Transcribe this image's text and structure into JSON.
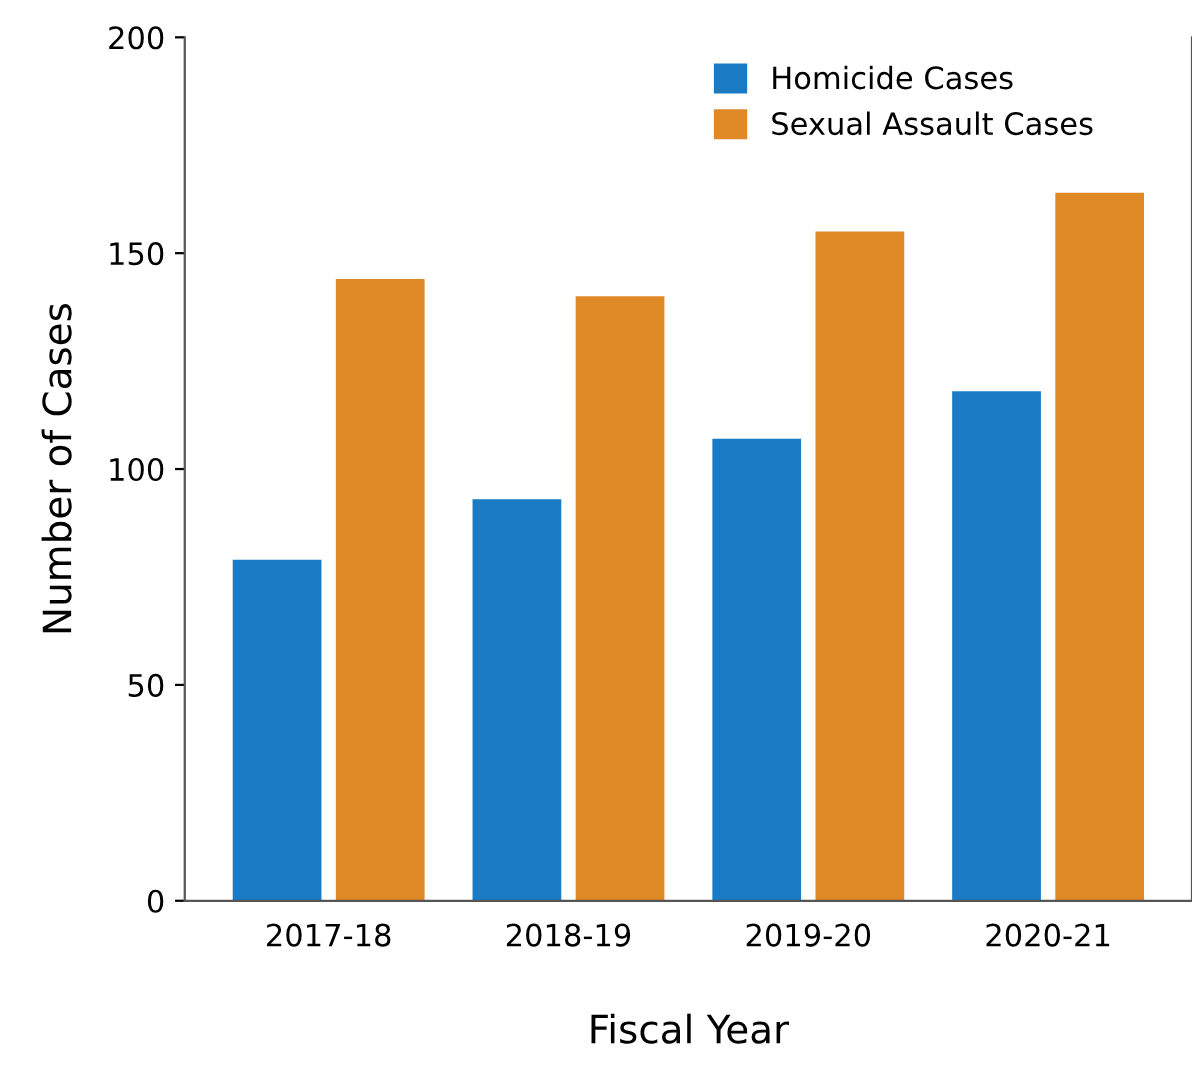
{
  "chart_data": {
    "type": "bar",
    "xlabel": "Fiscal Year",
    "ylabel": "Number of Cases",
    "categories": [
      "2017-18",
      "2018-19",
      "2019-20",
      "2020-21"
    ],
    "series": [
      {
        "name": "Homicide Cases",
        "color": "#1a7ac4",
        "values": [
          79,
          93,
          107,
          118
        ]
      },
      {
        "name": "Sexual Assault Cases",
        "color": "#e08a27",
        "values": [
          144,
          140,
          155,
          164
        ]
      }
    ],
    "ylim": [
      0,
      200
    ],
    "yticks": [
      0,
      50,
      100,
      150,
      200
    ],
    "grid": false,
    "legend": "top right"
  }
}
